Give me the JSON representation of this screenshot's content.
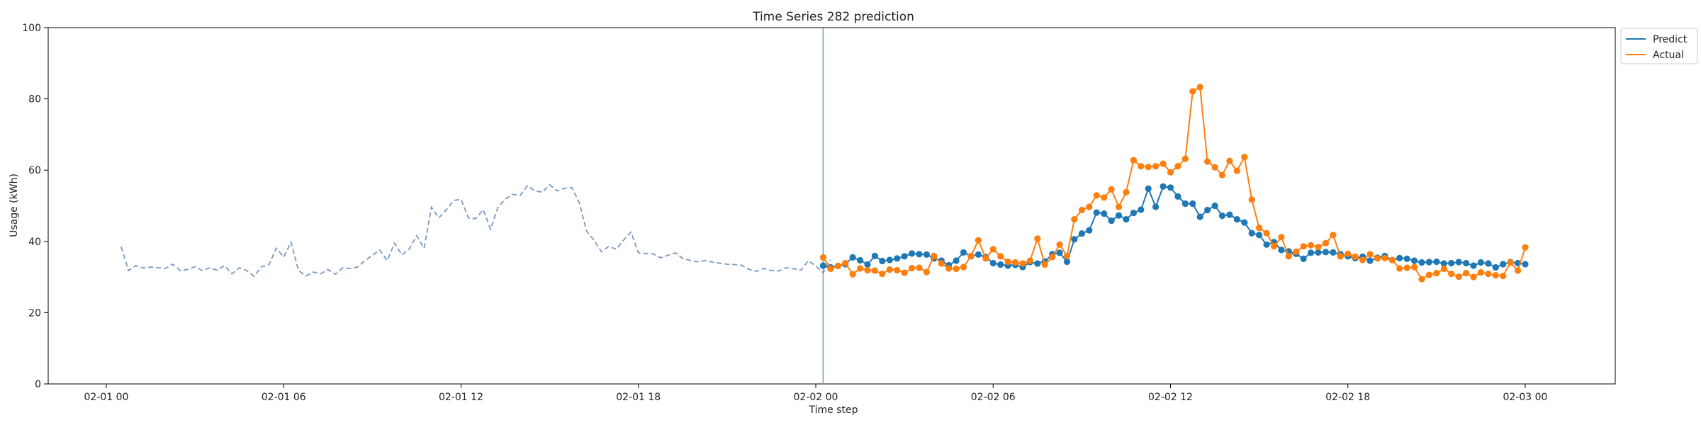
{
  "chart_data": {
    "type": "line",
    "title": "Time Series 282 prediction",
    "xlabel": "Time step",
    "ylabel": "Usage (kWh)",
    "ylim": [
      0,
      100
    ],
    "yticks": [
      0,
      20,
      40,
      60,
      80,
      100
    ],
    "xlim": [
      "2022-02-01 00:00",
      "2022-02-03 00:00"
    ],
    "xticks": [
      {
        "t": "2022-02-01 00:00",
        "label": "02-01 00"
      },
      {
        "t": "2022-02-01 06:00",
        "label": "02-01 06"
      },
      {
        "t": "2022-02-01 12:00",
        "label": "02-01 12"
      },
      {
        "t": "2022-02-01 18:00",
        "label": "02-01 18"
      },
      {
        "t": "2022-02-02 00:00",
        "label": "02-02 00"
      },
      {
        "t": "2022-02-02 06:00",
        "label": "02-02 06"
      },
      {
        "t": "2022-02-02 12:00",
        "label": "02-02 12"
      },
      {
        "t": "2022-02-02 18:00",
        "label": "02-02 18"
      },
      {
        "t": "2022-02-03 00:00",
        "label": "02-03 00"
      }
    ],
    "grid": false,
    "legend_position": "outside-top-right",
    "split_time": "2022-02-02 00:15",
    "history": {
      "start": "2022-02-01 00:30",
      "interval_minutes": 15,
      "line_style": "dashed",
      "color": "#7b98c2",
      "values": [
        38.5,
        31.8,
        33.2,
        32.5,
        32.8,
        32.6,
        32.4,
        33.6,
        31.8,
        32.1,
        32.9,
        31.8,
        32.6,
        31.9,
        33.2,
        30.9,
        32.6,
        31.8,
        30.2,
        32.9,
        33.4,
        38.1,
        35.6,
        39.8,
        31.8,
        30.3,
        31.4,
        30.9,
        32.1,
        30.8,
        32.6,
        32.4,
        32.8,
        34.6,
        36.1,
        37.6,
        34.6,
        39.5,
        36.2,
        37.9,
        41.6,
        38.1,
        49.6,
        46.6,
        48.8,
        51.5,
        51.8,
        46.6,
        46.4,
        48.9,
        43.4,
        49.6,
        51.9,
        53.2,
        52.9,
        55.6,
        54.2,
        53.8,
        55.9,
        54.2,
        54.9,
        55.1,
        50.9,
        42.8,
        40.3,
        37.1,
        38.6,
        37.8,
        40.4,
        42.6,
        36.8,
        36.6,
        36.5,
        35.4,
        36.1,
        36.8,
        35.2,
        34.7,
        34.3,
        34.6,
        34.2,
        33.9,
        33.6,
        33.5,
        33.3,
        32.1,
        31.6,
        32.4,
        31.8,
        31.7,
        32.6,
        32.3,
        31.9,
        34.6,
        33.1,
        31.2,
        34.9
      ]
    },
    "series": [
      {
        "name": "Predict",
        "color": "#1f77b4",
        "start": "2022-02-02 00:15",
        "interval_minutes": 15,
        "values": [
          33.2,
          32.7,
          33.1,
          33.6,
          35.5,
          34.7,
          33.5,
          35.9,
          34.5,
          34.8,
          35.2,
          35.8,
          36.6,
          36.4,
          36.3,
          35.2,
          34.6,
          33.3,
          34.6,
          36.9,
          35.8,
          36.3,
          35.6,
          33.9,
          33.5,
          33.2,
          33.4,
          32.8,
          34.2,
          33.8,
          34.4,
          36.4,
          36.8,
          34.3,
          40.6,
          42.2,
          43.1,
          48.1,
          47.8,
          45.8,
          47.3,
          46.2,
          48.0,
          48.9,
          54.8,
          49.7,
          55.4,
          55.1,
          52.6,
          50.6,
          50.6,
          46.9,
          48.8,
          50.0,
          47.2,
          47.5,
          46.2,
          45.3,
          42.3,
          41.8,
          39.1,
          39.8,
          37.6,
          37.2,
          36.5,
          35.1,
          36.8,
          36.9,
          37.0,
          36.9,
          36.4,
          35.8,
          35.3,
          35.7,
          34.6,
          35.4,
          35.9,
          34.8,
          35.3,
          35.1,
          34.6,
          34.1,
          34.2,
          34.3,
          33.8,
          33.9,
          34.2,
          33.9,
          33.2,
          34.1,
          33.8,
          32.7,
          33.6,
          34.2,
          33.9,
          33.6
        ]
      },
      {
        "name": "Actual",
        "color": "#ff7f0e",
        "start": "2022-02-02 00:15",
        "interval_minutes": 15,
        "values": [
          35.5,
          32.3,
          33.1,
          33.9,
          30.8,
          32.4,
          31.9,
          31.8,
          30.9,
          32.1,
          31.9,
          31.2,
          32.5,
          32.6,
          31.4,
          35.9,
          33.8,
          32.4,
          32.3,
          32.8,
          35.9,
          40.3,
          35.2,
          37.8,
          35.8,
          34.3,
          34.1,
          33.8,
          34.6,
          40.8,
          33.5,
          35.6,
          39.1,
          35.9,
          46.2,
          48.8,
          49.7,
          52.9,
          52.3,
          54.6,
          49.7,
          53.8,
          62.8,
          61.1,
          60.9,
          61.1,
          61.8,
          59.4,
          61.1,
          63.2,
          82.1,
          83.3,
          62.4,
          60.8,
          58.6,
          62.6,
          59.8,
          63.7,
          51.7,
          43.8,
          42.3,
          38.6,
          41.2,
          35.8,
          37.1,
          38.6,
          38.9,
          38.4,
          39.5,
          41.8,
          35.8,
          36.5,
          35.7,
          34.8,
          36.4,
          35.2,
          35.3,
          34.8,
          32.4,
          32.6,
          32.8,
          29.4,
          30.6,
          31.1,
          32.3,
          30.9,
          30.1,
          31.1,
          30.0,
          31.3,
          30.9,
          30.5,
          30.3,
          34.1,
          31.8,
          38.3
        ]
      }
    ]
  }
}
